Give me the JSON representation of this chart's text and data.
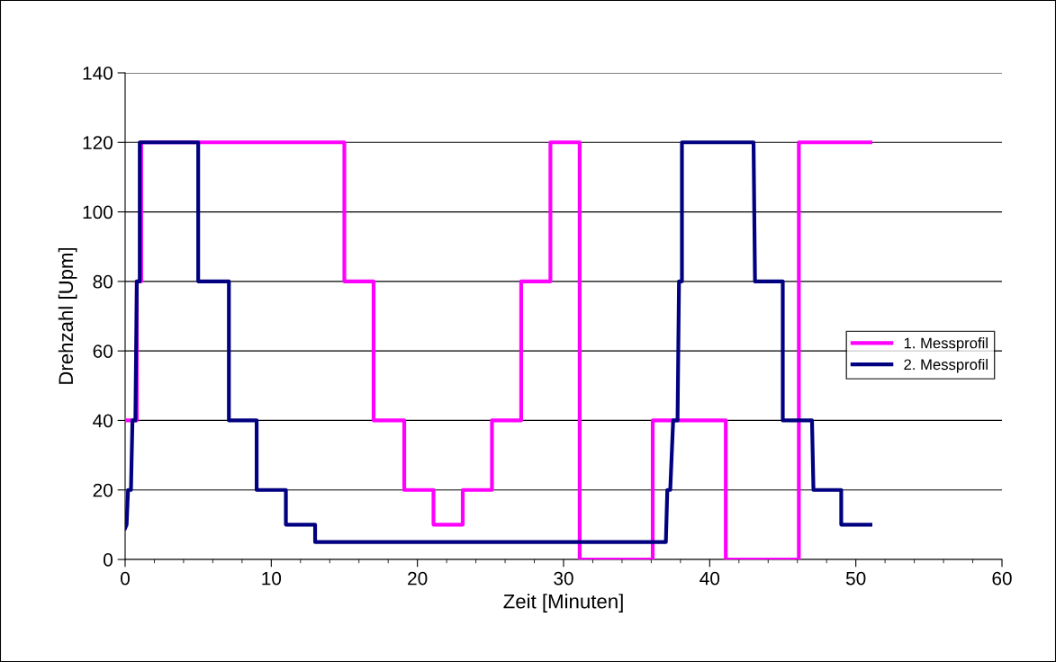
{
  "chart_data": {
    "type": "line",
    "xlabel": "Zeit [Minuten]",
    "ylabel": "Drehzahl [Upm]",
    "xlim": [
      0,
      60
    ],
    "ylim": [
      0,
      140
    ],
    "xticks": [
      0,
      10,
      20,
      30,
      40,
      50,
      60
    ],
    "yticks": [
      0,
      20,
      40,
      60,
      80,
      100,
      120,
      140
    ],
    "grid": "y",
    "legend": "right",
    "marker": "none",
    "line_style": "solid",
    "series": [
      {
        "name": "1. Messprofil",
        "color": "#ff00ff",
        "x": [
          0,
          0.8,
          0.8,
          1.1,
          1.1,
          15.0,
          15.0,
          17.0,
          17.0,
          19.1,
          19.1,
          21.1,
          21.1,
          23.1,
          23.1,
          25.1,
          25.1,
          27.1,
          27.1,
          29.1,
          29.1,
          31.1,
          31.1,
          36.1,
          36.1,
          41.1,
          41.1,
          46.1,
          46.1,
          51.0
        ],
        "values": [
          40,
          40,
          80,
          80,
          120,
          120,
          80,
          80,
          40,
          40,
          20,
          20,
          10,
          10,
          20,
          20,
          40,
          40,
          80,
          80,
          120,
          120,
          0,
          0,
          40,
          40,
          0,
          0,
          120,
          120
        ]
      },
      {
        "name": "2. Messprofil",
        "color": "#000080",
        "x": [
          0,
          0.1,
          0.2,
          0.4,
          0.5,
          0.7,
          0.8,
          1.0,
          1.0,
          5.0,
          5.0,
          7.1,
          7.1,
          9.0,
          9.0,
          11.0,
          11.0,
          13.0,
          13.0,
          37.0,
          37.1,
          37.3,
          37.5,
          37.8,
          37.9,
          38.1,
          38.1,
          43.0,
          43.1,
          45.0,
          45.0,
          47.0,
          47.1,
          49.0,
          49.0,
          51.0
        ],
        "values": [
          9,
          10,
          20,
          20,
          40,
          40,
          80,
          80,
          120,
          120,
          80,
          80,
          40,
          40,
          20,
          20,
          10,
          10,
          5,
          5,
          20,
          20,
          40,
          40,
          80,
          80,
          120,
          120,
          80,
          80,
          40,
          40,
          20,
          20,
          10,
          10
        ]
      }
    ]
  }
}
